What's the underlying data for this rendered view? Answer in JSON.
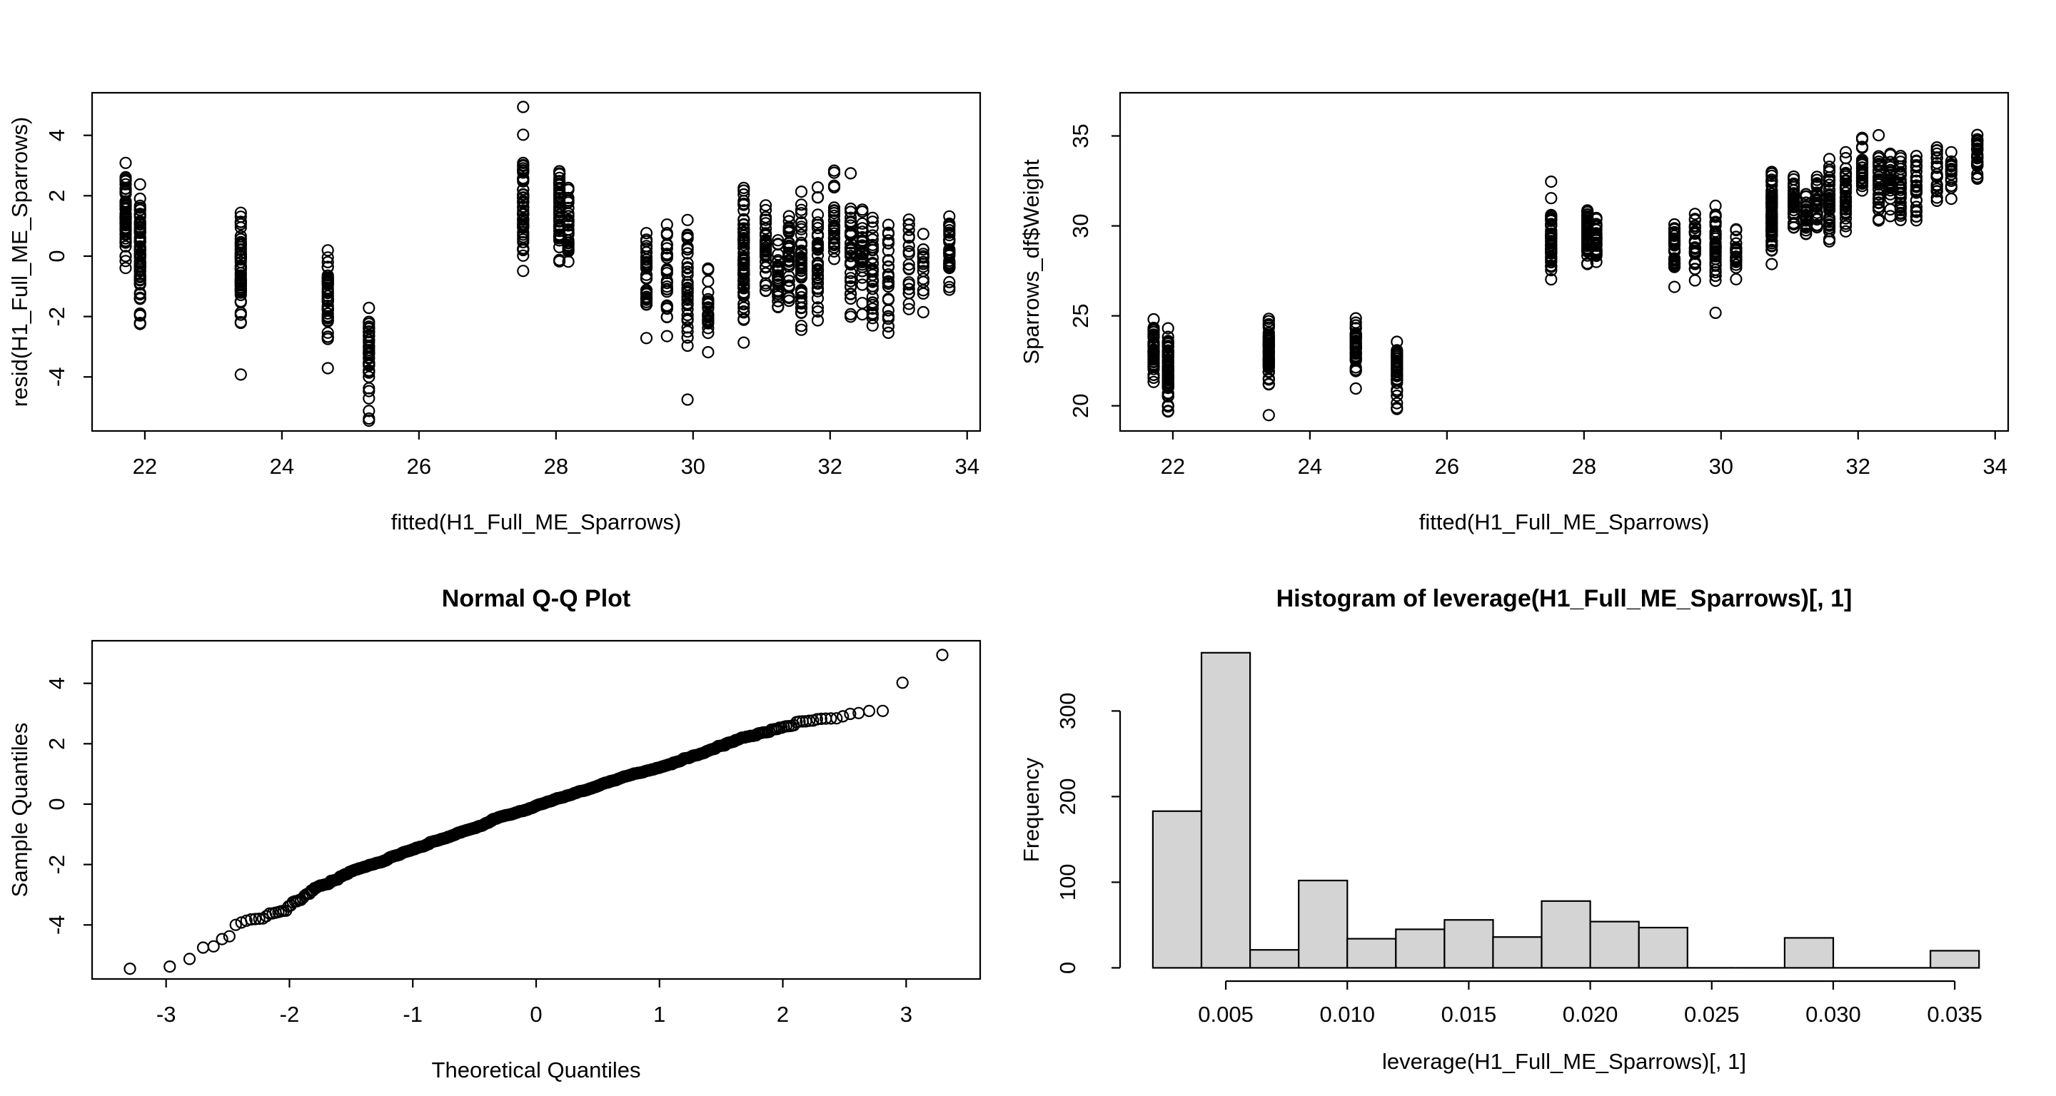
{
  "figure": {
    "background": "#ffffff",
    "point_color": "#000000",
    "axis_color": "#000000",
    "bar_fill": "#d4d4d4"
  },
  "chart_data": [
    {
      "id": "resid-vs-fitted",
      "type": "scatter",
      "title": "",
      "xlabel": "fitted(H1_Full_ME_Sparrows)",
      "ylabel": "resid(H1_Full_ME_Sparrows)",
      "xlim": [
        21.23,
        34.19
      ],
      "ylim": [
        -5.79,
        5.41
      ],
      "x_ticks": [
        22,
        24,
        26,
        28,
        30,
        32,
        34
      ],
      "y_ticks": [
        -4,
        -2,
        0,
        2,
        4
      ],
      "marker": "open-circle",
      "grid": false,
      "clusters": [
        {
          "fitted": 21.72,
          "n": 55,
          "resid_min": -1.05,
          "resid_max": 3.66
        },
        {
          "fitted": 21.93,
          "n": 75,
          "resid_min": -2.74,
          "resid_max": 2.8
        },
        {
          "fitted": 23.4,
          "n": 55,
          "resid_min": -2.9,
          "resid_max": 2.01
        },
        {
          "fitted": 24.67,
          "n": 45,
          "resid_min": -3.2,
          "resid_max": 0.73
        },
        {
          "fitted": 25.27,
          "n": 42,
          "resid_min": -5.3,
          "resid_max": -1.04
        },
        {
          "fitted": 27.52,
          "n": 50,
          "resid_min": -0.95,
          "resid_max": 4.1
        },
        {
          "fitted": 28.05,
          "n": 55,
          "resid_min": -0.6,
          "resid_max": 3.75
        },
        {
          "fitted": 28.18,
          "n": 30,
          "resid_min": -1.3,
          "resid_max": 3.4
        },
        {
          "fitted": 29.32,
          "n": 30,
          "resid_min": -3.05,
          "resid_max": 1.35
        },
        {
          "fitted": 29.62,
          "n": 28,
          "resid_min": -3.35,
          "resid_max": 2.6
        },
        {
          "fitted": 29.92,
          "n": 38,
          "resid_min": -4.15,
          "resid_max": 1.9
        },
        {
          "fitted": 30.22,
          "n": 25,
          "resid_min": -3.65,
          "resid_max": 0.35
        },
        {
          "fitted": 30.74,
          "n": 70,
          "resid_min": -3.8,
          "resid_max": 3.3
        },
        {
          "fitted": 31.06,
          "n": 34,
          "resid_min": -2.1,
          "resid_max": 2.55
        },
        {
          "fitted": 31.24,
          "n": 30,
          "resid_min": -3.6,
          "resid_max": 2.2
        },
        {
          "fitted": 31.4,
          "n": 30,
          "resid_min": -2.6,
          "resid_max": 2.55
        },
        {
          "fitted": 31.58,
          "n": 45,
          "resid_min": -3.6,
          "resid_max": 3.05
        },
        {
          "fitted": 31.82,
          "n": 40,
          "resid_min": -3.05,
          "resid_max": 3.15
        },
        {
          "fitted": 32.06,
          "n": 30,
          "resid_min": -1.1,
          "resid_max": 3.25
        },
        {
          "fitted": 32.3,
          "n": 34,
          "resid_min": -3.05,
          "resid_max": 3.2
        },
        {
          "fitted": 32.47,
          "n": 30,
          "resid_min": -2.4,
          "resid_max": 2.6
        },
        {
          "fitted": 32.62,
          "n": 34,
          "resid_min": -3.3,
          "resid_max": 2.3
        },
        {
          "fitted": 32.85,
          "n": 28,
          "resid_min": -3.55,
          "resid_max": 1.95
        },
        {
          "fitted": 33.15,
          "n": 20,
          "resid_min": -2.55,
          "resid_max": 1.85
        },
        {
          "fitted": 33.36,
          "n": 14,
          "resid_min": -2.25,
          "resid_max": 1.55
        },
        {
          "fitted": 33.74,
          "n": 35,
          "resid_min": -2.05,
          "resid_max": 2.95
        }
      ],
      "outlier_points": [
        {
          "fitted": 27.52,
          "resid": 4.94
        },
        {
          "fitted": 27.52,
          "resid": 4.02
        },
        {
          "fitted": 25.27,
          "resid": -5.45
        },
        {
          "fitted": 25.27,
          "resid": -5.38
        },
        {
          "fitted": 23.4,
          "resid": -3.92
        },
        {
          "fitted": 24.67,
          "resid": -3.71
        },
        {
          "fitted": 29.92,
          "resid": -4.75
        }
      ]
    },
    {
      "id": "weight-vs-fitted",
      "type": "scatter",
      "title": "",
      "xlabel": "fitted(H1_Full_ME_Sparrows)",
      "ylabel": "Sparrows_df$Weight",
      "xlim": [
        21.23,
        34.19
      ],
      "ylim": [
        18.6,
        37.4
      ],
      "x_ticks": [
        22,
        24,
        26,
        28,
        30,
        32,
        34
      ],
      "y_ticks": [
        20,
        25,
        30,
        35
      ],
      "marker": "open-circle",
      "grid": false,
      "derivation": "weight = fitted + resid (same observations as resid-vs-fitted panel)"
    },
    {
      "id": "normal-qq",
      "type": "scatter",
      "title": "Normal Q-Q Plot",
      "xlabel": "Theoretical Quantiles",
      "ylabel": "Sample Quantiles",
      "xlim": [
        -3.6,
        3.6
      ],
      "ylim": [
        -5.79,
        5.41
      ],
      "x_ticks": [
        -3,
        -2,
        -1,
        0,
        1,
        2,
        3
      ],
      "y_ticks": [
        -4,
        -2,
        0,
        2,
        4
      ],
      "marker": "open-circle",
      "grid": false,
      "derivation": "sorted residuals vs standard normal quantiles, straight dense line from (-3.3,-5.4) to (3.3,4.9)"
    },
    {
      "id": "leverage-histogram",
      "type": "bar",
      "title": "Histogram of leverage(H1_Full_ME_Sparrows)[, 1]",
      "xlabel": "leverage(H1_Full_ME_Sparrows)[, 1]",
      "ylabel": "Frequency",
      "xlim": [
        0.00065,
        0.0372
      ],
      "ylim": [
        -13,
        382
      ],
      "x_ticks": [
        0.005,
        0.01,
        0.015,
        0.02,
        0.025,
        0.03,
        0.035
      ],
      "x_tick_labels": [
        "0.005",
        "0.010",
        "0.015",
        "0.020",
        "0.025",
        "0.030",
        "0.035"
      ],
      "y_ticks": [
        0,
        100,
        200,
        300
      ],
      "grid": false,
      "bins": {
        "start": 0.002,
        "width": 0.002,
        "counts": [
          183,
          368,
          21,
          102,
          34,
          45,
          56,
          36,
          78,
          54,
          47,
          0,
          0,
          35,
          0,
          0,
          20
        ]
      }
    }
  ]
}
